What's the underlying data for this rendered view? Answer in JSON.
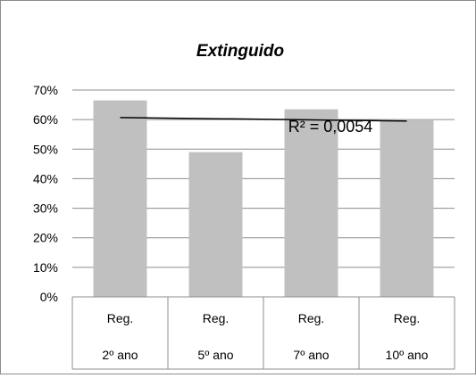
{
  "chart_data": {
    "type": "bar",
    "title": "Extinguido",
    "categories": [
      {
        "line1": "Reg.",
        "line2": "2º ano"
      },
      {
        "line1": "Reg.",
        "line2": "5º ano"
      },
      {
        "line1": "Reg.",
        "line2": "7º ano"
      },
      {
        "line1": "Reg.",
        "line2": "10º ano"
      }
    ],
    "values": [
      0.665,
      0.49,
      0.635,
      0.6
    ],
    "yticks": [
      "0%",
      "10%",
      "20%",
      "30%",
      "40%",
      "50%",
      "60%",
      "70%"
    ],
    "ylim": [
      0,
      0.7
    ],
    "grid": true,
    "bar_color": "#c0c0c0",
    "trendline": {
      "type": "linear",
      "start": 0.607,
      "end": 0.595,
      "label": "R² = 0,0054"
    }
  }
}
